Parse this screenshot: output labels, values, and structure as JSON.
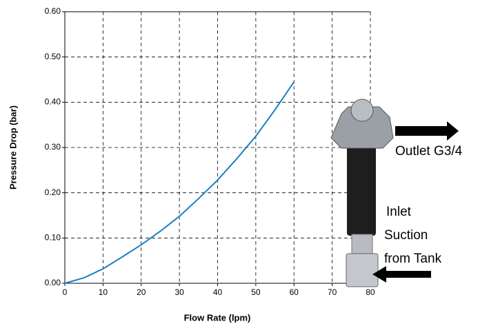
{
  "chart_data": {
    "type": "line",
    "x_label": "Flow Rate (lpm)",
    "y_label": "Pressure Drop (bar)",
    "x": [
      0,
      5,
      10,
      15,
      20,
      25,
      30,
      35,
      40,
      45,
      50,
      55,
      60
    ],
    "series": [
      {
        "color": "#1a7fc0",
        "values": [
          0,
          0.012,
          0.032,
          0.058,
          0.085,
          0.115,
          0.148,
          0.187,
          0.228,
          0.275,
          0.325,
          0.383,
          0.445
        ]
      }
    ],
    "xlim": [
      0,
      80
    ],
    "xticks": [
      0,
      10,
      20,
      30,
      40,
      50,
      60,
      70,
      80
    ],
    "ylim": [
      0,
      0.6
    ],
    "yticks": [
      {
        "value": 0,
        "label": "0.00"
      },
      {
        "value": 0.1,
        "label": "0.10"
      },
      {
        "value": 0.2,
        "label": "0.20"
      },
      {
        "value": 0.3,
        "label": "0.30"
      },
      {
        "value": 0.4,
        "label": "0.40"
      },
      {
        "value": 0.5,
        "label": "0.50"
      },
      {
        "value": 0.6,
        "label": "0.60"
      }
    ],
    "grid": true,
    "annotations": [
      "Outlet G3/4",
      "Inlet",
      "Suction",
      "from Tank"
    ]
  }
}
